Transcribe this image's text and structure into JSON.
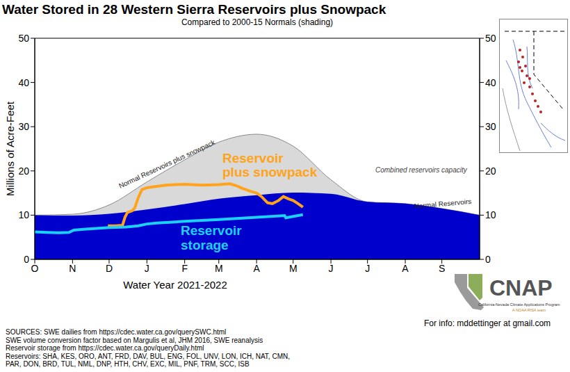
{
  "chart_data": {
    "type": "area",
    "title": "Water Stored in 28 Western Sierra Reservoirs plus Snowpack",
    "subtitle": "Compared to 2000-15 Normals (shading)",
    "x_label": "Water Year 2021-2022",
    "y_label": "Millions of Acre-Feet",
    "xlim": [
      0,
      365
    ],
    "xticks": [
      {
        "value": 0,
        "label": "O"
      },
      {
        "value": 31,
        "label": "N"
      },
      {
        "value": 61,
        "label": "D"
      },
      {
        "value": 92,
        "label": "J"
      },
      {
        "value": 123,
        "label": "F"
      },
      {
        "value": 151,
        "label": "M"
      },
      {
        "value": 182,
        "label": "A"
      },
      {
        "value": 212,
        "label": "M"
      },
      {
        "value": 243,
        "label": "J"
      },
      {
        "value": 273,
        "label": "J"
      },
      {
        "value": 304,
        "label": "A"
      },
      {
        "value": 334,
        "label": "S"
      }
    ],
    "ylim": [
      0,
      50
    ],
    "yticks": [
      0,
      10,
      20,
      30,
      40,
      50
    ],
    "series": [
      {
        "name": "Normal Reservoirs plus snowpack",
        "type": "area",
        "color": "#d9d9d9",
        "x": [
          0,
          31,
          61,
          92,
          123,
          151,
          182,
          212,
          243,
          273,
          304,
          334,
          365
        ],
        "values": [
          10.0,
          10.2,
          12.3,
          17.5,
          22.5,
          26.5,
          28.3,
          25.6,
          18.0,
          13.0,
          12.6,
          11.5,
          10.0
        ]
      },
      {
        "name": "Normal Reservoirs",
        "type": "area",
        "color": "#0000cd",
        "x": [
          0,
          31,
          61,
          92,
          123,
          151,
          182,
          212,
          243,
          273,
          304,
          334,
          365
        ],
        "values": [
          10.0,
          9.9,
          10.3,
          11.3,
          12.5,
          13.7,
          14.5,
          15.1,
          14.8,
          13.0,
          12.6,
          11.5,
          10.0
        ]
      },
      {
        "name": "Reservoir plus snowpack",
        "type": "line",
        "color": "#ffa31a",
        "x": [
          60,
          66,
          72,
          74,
          76,
          80,
          82,
          85,
          88,
          92,
          100,
          108,
          123,
          137,
          151,
          160,
          165,
          170,
          177,
          182,
          186,
          191,
          195,
          200,
          204,
          208,
          212,
          216,
          220
        ],
        "values": [
          7.6,
          7.6,
          7.7,
          9.5,
          10.6,
          11.0,
          11.6,
          14.0,
          15.8,
          16.2,
          16.5,
          16.8,
          17.0,
          16.8,
          16.9,
          17.1,
          16.7,
          16.1,
          15.4,
          15.0,
          14.2,
          12.8,
          12.6,
          13.3,
          14.2,
          13.7,
          13.3,
          12.6,
          11.8
        ]
      },
      {
        "name": "Reservoir storage",
        "type": "line",
        "color": "#1ad1ff",
        "x": [
          0,
          10,
          20,
          28,
          32,
          40,
          61,
          75,
          85,
          92,
          100,
          123,
          151,
          182,
          205,
          206,
          212,
          220
        ],
        "values": [
          6.2,
          6.1,
          6.0,
          6.1,
          6.6,
          6.8,
          7.2,
          7.3,
          7.6,
          8.0,
          8.2,
          8.6,
          9.0,
          9.5,
          9.9,
          9.4,
          9.7,
          10.1
        ]
      }
    ],
    "annotations": [
      "Combined reservoirs capacity"
    ],
    "sources": [
      "SOURCES: SWE dailies from https://cdec.water.ca.gov/querySWC.html",
      "SWE volume conversion factor based on Margulis et al, JHM 2016, SWE reanalysis",
      "Reservoir storage from https://cdec.water.ca.gov/queryDaily.html",
      "Reservoirs: SHA, KES, ORO, ANT, FRD, DAV, BUL, ENG, FOL, UNV, LON, ICH, NAT, CMN,",
      "PAR, DON, BRD, TUL, NML, DNP, HTH, CHV, EXC, MIL, PNF, TRM, SCC, ISB"
    ],
    "credits": {
      "logo": "CNAP",
      "organization": "California-Nevada Climate Applications Program",
      "tagline": "A NOAA RISA team",
      "contact": "For info: mddettinger at gmail.com"
    }
  }
}
